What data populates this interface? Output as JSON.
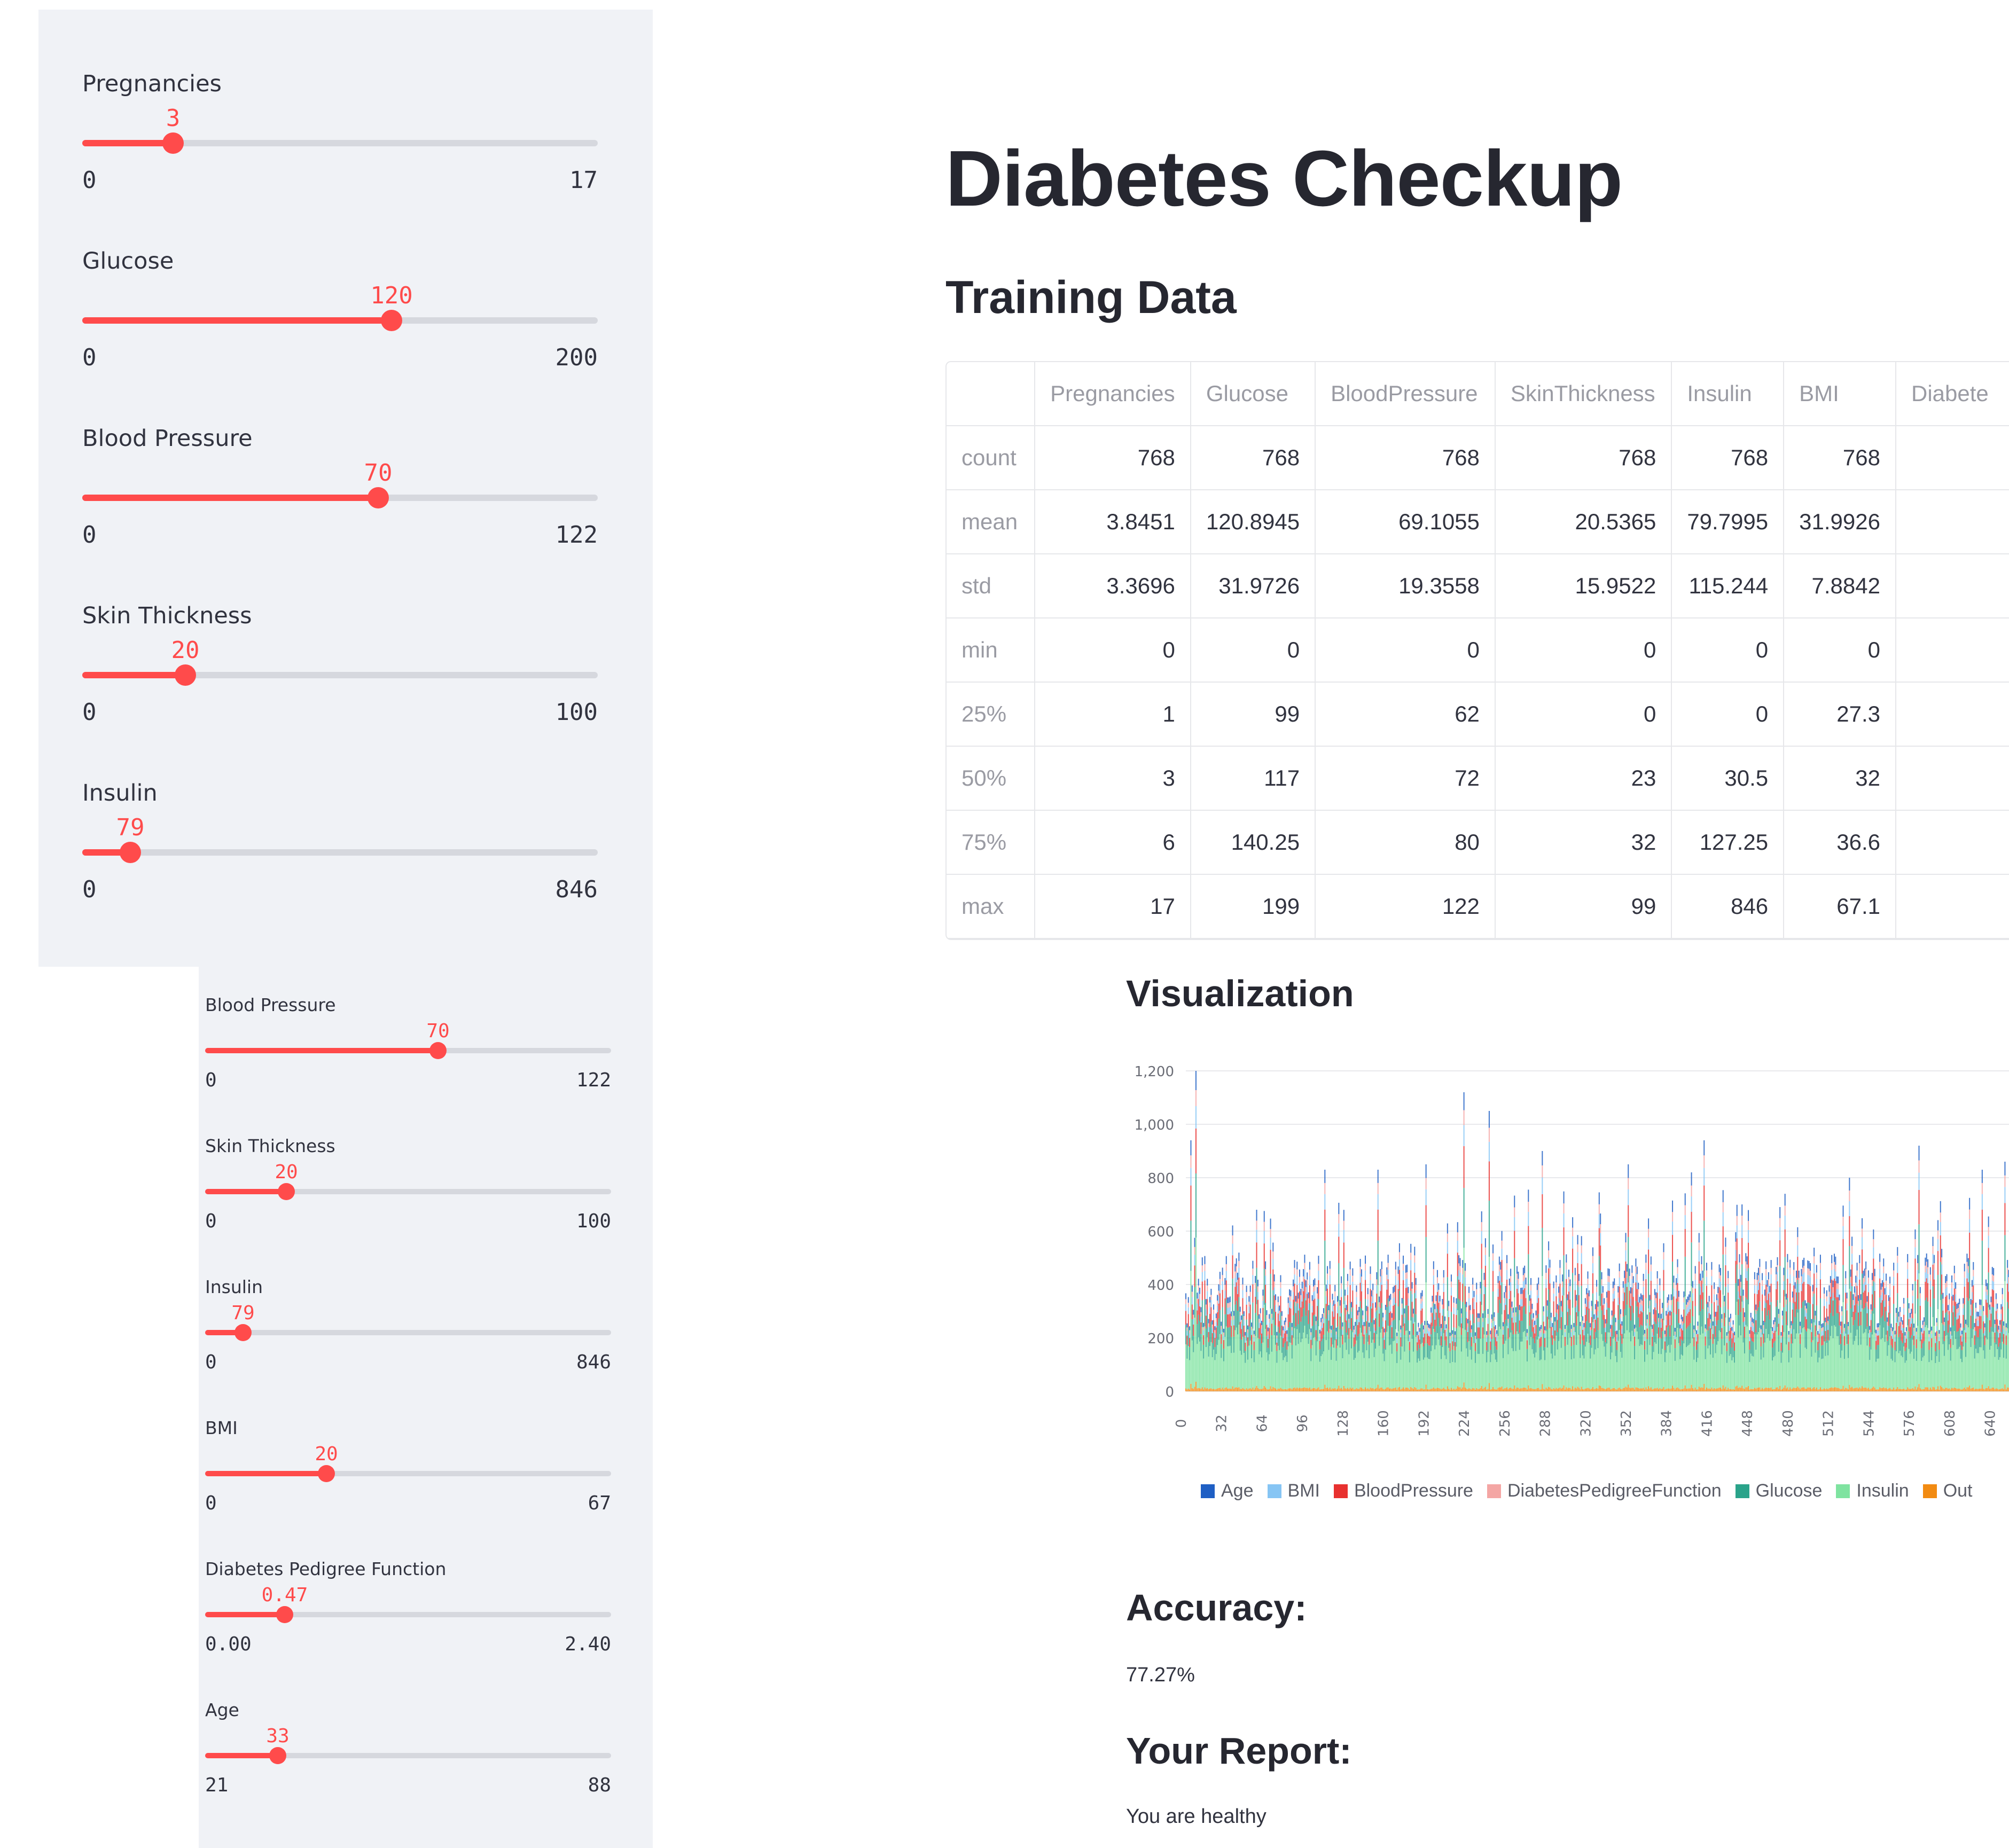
{
  "sidebar_top": {
    "sliders": [
      {
        "label": "Pregnancies",
        "value": "3",
        "min": "0",
        "max": "17",
        "fraction": 0.1765
      },
      {
        "label": "Glucose",
        "value": "120",
        "min": "0",
        "max": "200",
        "fraction": 0.6
      },
      {
        "label": "Blood Pressure",
        "value": "70",
        "min": "0",
        "max": "122",
        "fraction": 0.5738
      },
      {
        "label": "Skin Thickness",
        "value": "20",
        "min": "0",
        "max": "100",
        "fraction": 0.2
      },
      {
        "label": "Insulin",
        "value": "79",
        "min": "0",
        "max": "846",
        "fraction": 0.0934
      }
    ]
  },
  "sidebar_bottom": {
    "sliders": [
      {
        "label": "Blood Pressure",
        "value": "70",
        "min": "0",
        "max": "122",
        "fraction": 0.5738
      },
      {
        "label": "Skin Thickness",
        "value": "20",
        "min": "0",
        "max": "100",
        "fraction": 0.2
      },
      {
        "label": "Insulin",
        "value": "79",
        "min": "0",
        "max": "846",
        "fraction": 0.0934
      },
      {
        "label": "BMI",
        "value": "20",
        "min": "0",
        "max": "67",
        "fraction": 0.2985
      },
      {
        "label": "Diabetes Pedigree Function",
        "value": "0.47",
        "min": "0.00",
        "max": "2.40",
        "fraction": 0.1958
      },
      {
        "label": "Age",
        "value": "33",
        "min": "21",
        "max": "88",
        "fraction": 0.1791
      }
    ]
  },
  "main": {
    "title": "Diabetes Checkup",
    "training_heading": "Training Data",
    "visualization_heading": "Visualization",
    "accuracy_heading": "Accuracy:",
    "accuracy_value": "77.27%",
    "report_heading": "Your Report:",
    "report_value": "You are healthy"
  },
  "table": {
    "columns": [
      "",
      "Pregnancies",
      "Glucose",
      "BloodPressure",
      "SkinThickness",
      "Insulin",
      "BMI",
      "Diabete"
    ],
    "rows": [
      [
        "count",
        "768",
        "768",
        "768",
        "768",
        "768",
        "768",
        ""
      ],
      [
        "mean",
        "3.8451",
        "120.8945",
        "69.1055",
        "20.5365",
        "79.7995",
        "31.9926",
        ""
      ],
      [
        "std",
        "3.3696",
        "31.9726",
        "19.3558",
        "15.9522",
        "115.244",
        "7.8842",
        ""
      ],
      [
        "min",
        "0",
        "0",
        "0",
        "0",
        "0",
        "0",
        ""
      ],
      [
        "25%",
        "1",
        "99",
        "62",
        "0",
        "0",
        "27.3",
        ""
      ],
      [
        "50%",
        "3",
        "117",
        "72",
        "23",
        "30.5",
        "32",
        ""
      ],
      [
        "75%",
        "6",
        "140.25",
        "80",
        "32",
        "127.25",
        "36.6",
        ""
      ],
      [
        "max",
        "17",
        "199",
        "122",
        "99",
        "846",
        "67.1",
        ""
      ]
    ]
  },
  "chart_data": {
    "type": "bar",
    "stacked": true,
    "title": "",
    "xlabel": "",
    "ylabel": "",
    "ylim": [
      0,
      1200
    ],
    "xlim": [
      0,
      655
    ],
    "y_ticks": [
      "0",
      "200",
      "400",
      "600",
      "800",
      "1,000",
      "1,200"
    ],
    "y_tick_values": [
      0,
      200,
      400,
      600,
      800,
      1000,
      1200
    ],
    "x_ticks": [
      "0",
      "32",
      "64",
      "96",
      "128",
      "160",
      "192",
      "224",
      "256",
      "288",
      "320",
      "352",
      "384",
      "416",
      "448",
      "480",
      "512",
      "544",
      "576",
      "608",
      "640"
    ],
    "x_tick_values": [
      0,
      32,
      64,
      96,
      128,
      160,
      192,
      224,
      256,
      288,
      320,
      352,
      384,
      416,
      448,
      480,
      512,
      544,
      576,
      608,
      640
    ],
    "legend": [
      {
        "name": "Age",
        "color": "#1f5fc4"
      },
      {
        "name": "BMI",
        "color": "#86c5f4"
      },
      {
        "name": "BloodPressure",
        "color": "#e8312f"
      },
      {
        "name": "DiabetesPedigreeFunction",
        "color": "#f4a6a4"
      },
      {
        "name": "Glucose",
        "color": "#2aa38a"
      },
      {
        "name": "Insulin",
        "color": "#7fe3a0"
      },
      {
        "name": "Out",
        "color": "#f28b12"
      }
    ],
    "peaks": [
      {
        "x": 8,
        "y": 1200
      },
      {
        "x": 4,
        "y": 940
      },
      {
        "x": 220,
        "y": 1120
      },
      {
        "x": 240,
        "y": 1050
      },
      {
        "x": 410,
        "y": 940
      },
      {
        "x": 580,
        "y": 920
      },
      {
        "x": 282,
        "y": 900
      },
      {
        "x": 350,
        "y": 850
      },
      {
        "x": 110,
        "y": 830
      },
      {
        "x": 152,
        "y": 830
      },
      {
        "x": 190,
        "y": 850
      },
      {
        "x": 630,
        "y": 830
      },
      {
        "x": 648,
        "y": 860
      },
      {
        "x": 525,
        "y": 800
      },
      {
        "x": 56,
        "y": 680
      },
      {
        "x": 400,
        "y": 820
      },
      {
        "x": 440,
        "y": 700
      },
      {
        "x": 470,
        "y": 690
      }
    ]
  }
}
